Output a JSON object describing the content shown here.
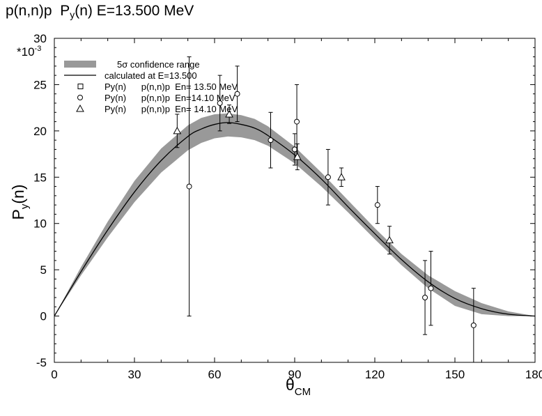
{
  "title": {
    "reaction": "p(n,n)p",
    "observable_main": "P",
    "observable_sub": "y",
    "observable_tail": "(n)",
    "energy": "E=13.500 MeV"
  },
  "chart_data": {
    "type": "scatter",
    "xlabel": {
      "main": "θ",
      "sub": "CM"
    },
    "ylabel": {
      "main": "P",
      "sub": "y",
      "tail": "(n)"
    },
    "y_multiplier": "*10",
    "y_multiplier_exp": "-3",
    "xlim": [
      0,
      180
    ],
    "ylim": [
      -5,
      30
    ],
    "x_ticks": [
      "0",
      "30",
      "60",
      "90",
      "120",
      "150",
      "180"
    ],
    "y_ticks": [
      "-5",
      "0",
      "5",
      "10",
      "15",
      "20",
      "25",
      "30"
    ],
    "grid": false,
    "legend_position": "top-left",
    "legend": [
      {
        "symbol": "band",
        "label": "5σ confidence range"
      },
      {
        "symbol": "line",
        "label": "calculated at E=13.500"
      },
      {
        "symbol": "square",
        "label": "Py(n)      p(n,n)p  En= 13.50 MeV"
      },
      {
        "symbol": "circle",
        "label": "Py(n)      p(n,n)p  En=14.10 MeV"
      },
      {
        "symbol": "triangle",
        "label": "Py(n)      p(n,n)p  En= 14.10 MeV"
      }
    ],
    "band": {
      "x": [
        0,
        10,
        20,
        30,
        40,
        50,
        55,
        60,
        65,
        70,
        75,
        80,
        90,
        100,
        110,
        120,
        130,
        140,
        150,
        160,
        170,
        180
      ],
      "lower": [
        0,
        4.4,
        8.5,
        12.3,
        15.5,
        17.9,
        18.7,
        19.2,
        19.4,
        19.3,
        19.0,
        18.4,
        16.5,
        14.0,
        11.2,
        8.3,
        5.5,
        3.0,
        1.1,
        0.2,
        0.0,
        0.0
      ],
      "upper": [
        0,
        5.3,
        10.2,
        14.6,
        18.1,
        20.6,
        21.4,
        21.8,
        21.9,
        21.7,
        21.3,
        20.5,
        18.3,
        15.5,
        12.5,
        9.5,
        6.7,
        4.4,
        2.7,
        1.4,
        0.5,
        0.0
      ]
    },
    "curve": {
      "x": [
        0,
        10,
        20,
        30,
        40,
        50,
        55,
        60,
        65,
        70,
        75,
        80,
        90,
        100,
        110,
        120,
        130,
        140,
        150,
        160,
        170,
        180
      ],
      "y": [
        0,
        4.8,
        9.3,
        13.4,
        16.8,
        19.4,
        20.2,
        20.7,
        20.9,
        20.7,
        20.3,
        19.5,
        17.4,
        14.8,
        11.8,
        8.9,
        6.1,
        3.7,
        1.9,
        0.8,
        0.2,
        0.0
      ]
    },
    "series": [
      {
        "symbol": "square",
        "points": []
      },
      {
        "symbol": "circle",
        "points": [
          {
            "x": 50.5,
            "y": 14.0,
            "err": 14.0
          },
          {
            "x": 62,
            "y": 23.0,
            "err": 3.0
          },
          {
            "x": 68.5,
            "y": 24.0,
            "err": 3.0
          },
          {
            "x": 81,
            "y": 19.0,
            "err": 3.0
          },
          {
            "x": 90,
            "y": 18.0,
            "err": 1.7
          },
          {
            "x": 90.8,
            "y": 21.0,
            "err": 4.0
          },
          {
            "x": 102.5,
            "y": 15.0,
            "err": 3.0
          },
          {
            "x": 121,
            "y": 12.0,
            "err": 2.0
          },
          {
            "x": 138.8,
            "y": 2.0,
            "err": 4.0
          },
          {
            "x": 141,
            "y": 3.0,
            "err": 4.0
          },
          {
            "x": 157,
            "y": -1.0,
            "err": 4.0
          }
        ]
      },
      {
        "symbol": "triangle",
        "points": [
          {
            "x": 46,
            "y": 20.0,
            "err": 1.8
          },
          {
            "x": 65.5,
            "y": 21.8,
            "err": 1.0
          },
          {
            "x": 91,
            "y": 17.2,
            "err": 1.4
          },
          {
            "x": 107.5,
            "y": 15.0,
            "err": 1.0
          },
          {
            "x": 125.5,
            "y": 8.2,
            "err": 1.5
          }
        ]
      }
    ]
  }
}
